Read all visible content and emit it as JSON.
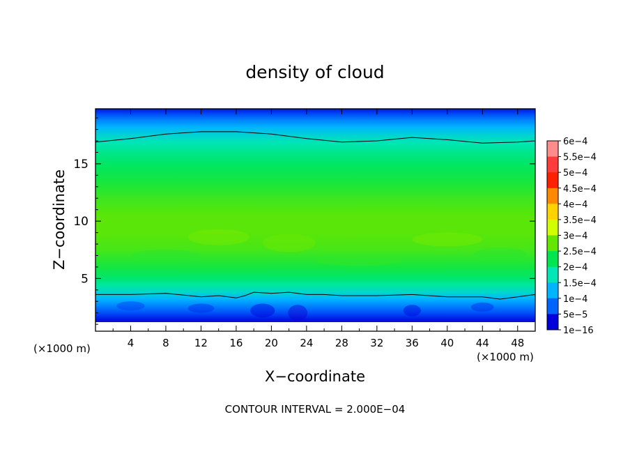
{
  "chart_data": {
    "type": "heatmap",
    "title": "density of cloud",
    "xlabel": "X−coordinate",
    "ylabel": "Z−coordinate",
    "x_unit_label_left": "(×1000 m)",
    "x_unit_label_right": "(×1000 m)",
    "footer": "CONTOUR INTERVAL = 2.000E−04",
    "xlim": [
      0,
      50
    ],
    "ylim": [
      0.4,
      19.8
    ],
    "x_ticks": [
      4,
      8,
      12,
      16,
      20,
      24,
      28,
      32,
      36,
      40,
      44,
      48
    ],
    "x_tick_labels": [
      "4",
      "8",
      "12",
      "16",
      "20",
      "24",
      "28",
      "32",
      "36",
      "40",
      "44",
      "48"
    ],
    "y_ticks": [
      5,
      10,
      15
    ],
    "y_tick_labels": [
      "5",
      "10",
      "15"
    ],
    "colorbar": {
      "labels": [
        "6e−4",
        "5.5e−4",
        "5e−4",
        "4.5e−4",
        "4e−4",
        "3.5e−4",
        "3e−4",
        "2.5e−4",
        "2e−4",
        "1.5e−4",
        "1e−4",
        "5e−5",
        "1e−16"
      ],
      "values": [
        0.0006,
        0.00055,
        0.0005,
        0.00045,
        0.0004,
        0.00035,
        0.0003,
        0.00025,
        0.0002,
        0.00015,
        0.0001,
        5e-05,
        1e-16
      ],
      "colors": [
        "#ff8c8c",
        "#ff3c3c",
        "#ff2000",
        "#ff8800",
        "#ffd200",
        "#d2ff00",
        "#64e600",
        "#00e650",
        "#00e6b4",
        "#00b4ff",
        "#0064ff",
        "#0000dc",
        "#5a00aa"
      ]
    },
    "profile": {
      "z": [
        0.6,
        1.0,
        1.4,
        2.0,
        2.6,
        3.2,
        3.8,
        4.4,
        5.0,
        6.0,
        7.5,
        9.0,
        10.5,
        12.0,
        13.5,
        15.0,
        16.0,
        16.8,
        17.5,
        18.2,
        18.8,
        19.3,
        19.8
      ],
      "density": [
        0,
        3e-05,
        6e-05,
        9e-05,
        0.00012,
        0.00015,
        0.000185,
        0.00021,
        0.000235,
        0.00026,
        0.000285,
        0.000295,
        0.000295,
        0.00028,
        0.00026,
        0.00024,
        0.00022,
        0.0002,
        0.00018,
        0.00015,
        0.00012,
        9e-05,
        6e-05
      ]
    },
    "contour_2e-4_upper": {
      "x": [
        0,
        4,
        8,
        12,
        16,
        20,
        24,
        28,
        32,
        36,
        40,
        44,
        48,
        50
      ],
      "z": [
        16.9,
        17.2,
        17.6,
        17.8,
        17.8,
        17.6,
        17.2,
        16.9,
        17.0,
        17.3,
        17.1,
        16.8,
        16.9,
        17.0
      ]
    },
    "contour_2e-4_lower": {
      "x": [
        0,
        4,
        8,
        12,
        14,
        16,
        17,
        18,
        20,
        22,
        24,
        26,
        28,
        32,
        36,
        40,
        44,
        46,
        48,
        50
      ],
      "z": [
        3.6,
        3.6,
        3.7,
        3.4,
        3.5,
        3.3,
        3.5,
        3.8,
        3.7,
        3.8,
        3.6,
        3.6,
        3.5,
        3.5,
        3.6,
        3.4,
        3.4,
        3.2,
        3.4,
        3.6
      ]
    }
  }
}
